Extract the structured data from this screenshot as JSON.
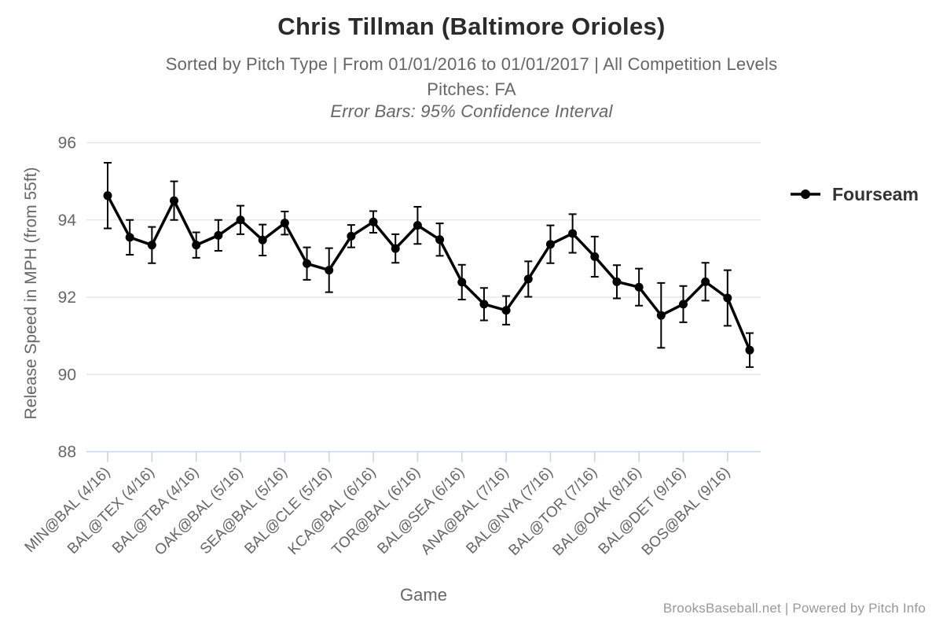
{
  "chart_data": {
    "type": "line",
    "title": "Chris Tillman (Baltimore Orioles)",
    "subtitle": "Sorted by Pitch Type | From 01/01/2016 to 01/01/2017 | All Competition Levels",
    "subtitle2": "Pitches: FA",
    "subtitle3": "Error Bars: 95% Confidence Interval",
    "xlabel": "Game",
    "ylabel": "Release Speed in MPH (from 55ft)",
    "ylim": [
      88,
      96
    ],
    "yticks": [
      88,
      90,
      92,
      94,
      96
    ],
    "grid": true,
    "legend_position": "right-center",
    "n_points": 30,
    "x_tick_every": 2,
    "x_tick_labels": [
      "MIN@BAL (4/16)",
      "BAL@TEX (4/16)",
      "BAL@TBA (4/16)",
      "OAK@BAL (5/16)",
      "SEA@BAL (5/16)",
      "BAL@CLE (5/16)",
      "KCA@BAL (6/16)",
      "TOR@BAL (6/16)",
      "BAL@SEA (6/16)",
      "ANA@BAL (7/16)",
      "BAL@NYA (7/16)",
      "BAL@TOR (7/16)",
      "BAL@OAK (8/16)",
      "BAL@DET (9/16)",
      "BOS@BAL (9/16)"
    ],
    "series": [
      {
        "name": "Fourseam",
        "color": "#000000",
        "values": [
          94.63,
          93.55,
          93.35,
          94.5,
          93.35,
          93.6,
          94.0,
          93.48,
          93.92,
          92.87,
          92.7,
          93.58,
          93.95,
          93.26,
          93.86,
          93.49,
          92.39,
          91.82,
          91.66,
          92.47,
          93.37,
          93.65,
          93.05,
          92.4,
          92.26,
          91.53,
          91.82,
          92.4,
          91.98,
          90.63
        ],
        "ci_half_width": [
          0.85,
          0.45,
          0.47,
          0.5,
          0.33,
          0.4,
          0.37,
          0.4,
          0.3,
          0.42,
          0.57,
          0.29,
          0.28,
          0.37,
          0.48,
          0.42,
          0.45,
          0.42,
          0.37,
          0.46,
          0.49,
          0.5,
          0.52,
          0.43,
          0.48,
          0.84,
          0.47,
          0.49,
          0.72,
          0.44
        ]
      }
    ],
    "colors": {
      "series": "#000000",
      "axis_line": "#c8d4e8",
      "grid_line": "#e8e8e8",
      "tick_label": "#666666",
      "title_text": "#2b2b2b",
      "credit_text": "#999999"
    }
  },
  "footer": {
    "credit": "BrooksBaseball.net | Powered by Pitch Info"
  }
}
